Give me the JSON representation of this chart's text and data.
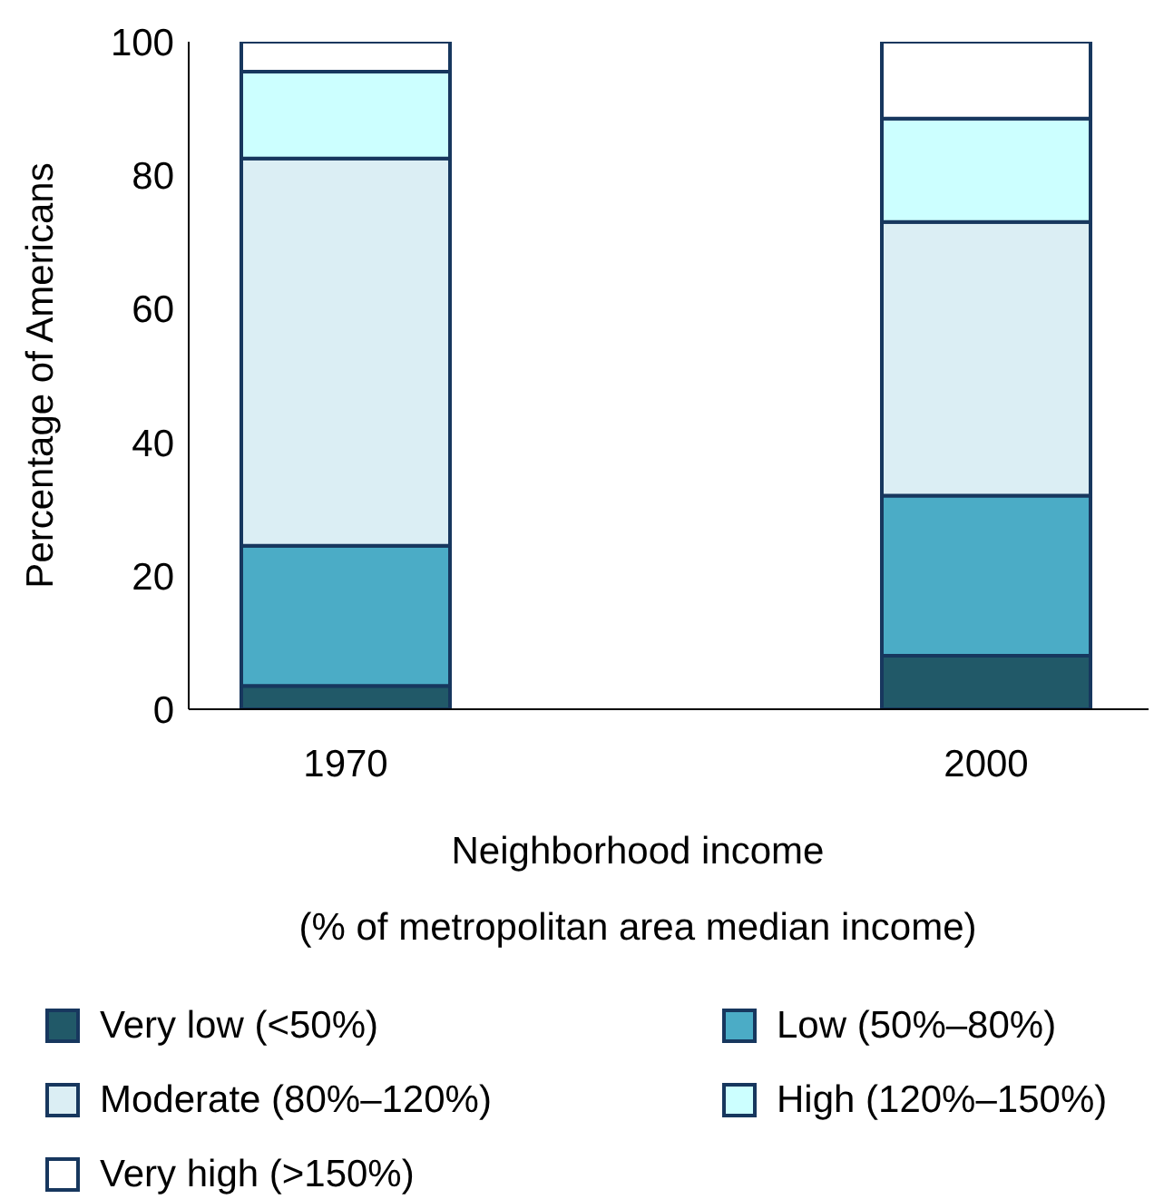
{
  "chart_data": {
    "type": "bar",
    "stacked": true,
    "categories": [
      "1970",
      "2000"
    ],
    "series": [
      {
        "name": "Very low (<50%)",
        "color": "#215968",
        "values": [
          3.5,
          8
        ]
      },
      {
        "name": "Low (50%–80%)",
        "color": "#4bacc6",
        "values": [
          21,
          24
        ]
      },
      {
        "name": "Moderate (80%–120%)",
        "color": "#dbeef4",
        "values": [
          58,
          41
        ]
      },
      {
        "name": "High (120%–150%)",
        "color": "#ccffff",
        "values": [
          13,
          15.5
        ]
      },
      {
        "name": "Very high (>150%)",
        "color": "#ffffff",
        "values": [
          4.5,
          11.5
        ]
      }
    ],
    "ylim": [
      0,
      100
    ],
    "yticks": [
      0,
      20,
      40,
      60,
      80,
      100
    ],
    "ylabel": "Percentage of Americans",
    "xlabel": "Neighborhood income\n(% of metropolitan area median income)",
    "legend": "bottom"
  }
}
